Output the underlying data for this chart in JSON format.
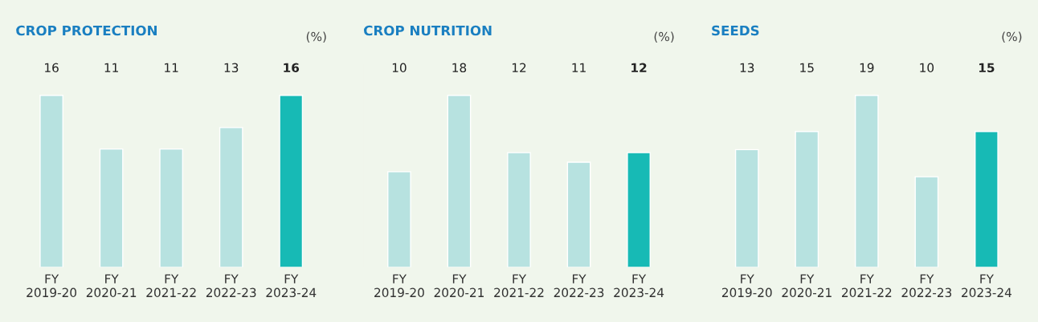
{
  "chart_data": [
    {
      "type": "bar",
      "title": "CROP PROTECTION",
      "annotations": [
        "(%)"
      ],
      "categories": [
        "FY\n2019-20",
        "FY\n2020-21",
        "FY\n2021-22",
        "FY\n2022-23",
        "FY\n2023-24"
      ],
      "values": [
        16,
        11,
        11,
        13,
        16
      ],
      "colors": [
        "#b7e2e0",
        "#b7e2e0",
        "#b7e2e0",
        "#b7e2e0",
        "#17bab5"
      ],
      "data_labels": true
    },
    {
      "type": "bar",
      "title": "CROP NUTRITION",
      "annotations": [
        "(%)"
      ],
      "categories": [
        "FY\n2019-20",
        "FY\n2020-21",
        "FY\n2021-22",
        "FY\n2022-23",
        "FY\n2023-24"
      ],
      "values": [
        10,
        18,
        12,
        11,
        12
      ],
      "colors": [
        "#b7e2e0",
        "#b7e2e0",
        "#b7e2e0",
        "#b7e2e0",
        "#17bab5"
      ],
      "data_labels": true
    },
    {
      "type": "bar",
      "title": "SEEDS",
      "annotations": [
        "(%)"
      ],
      "categories": [
        "FY\n2019-20",
        "FY\n2020-21",
        "FY\n2021-22",
        "FY\n2022-23",
        "FY\n2023-24"
      ],
      "values": [
        13,
        15,
        19,
        10,
        15
      ],
      "colors": [
        "#b7e2e0",
        "#b7e2e0",
        "#b7e2e0",
        "#b7e2e0",
        "#17bab5"
      ],
      "data_labels": true
    }
  ]
}
